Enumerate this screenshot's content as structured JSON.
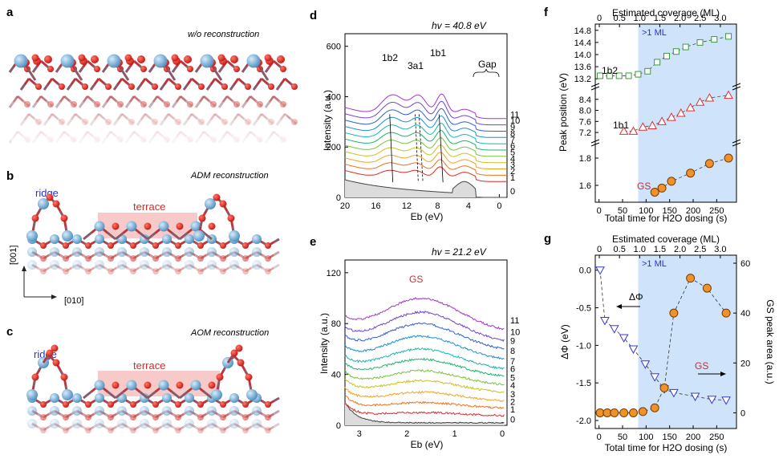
{
  "panels": {
    "a": {
      "letter": "a",
      "title": "w/o reconstruction"
    },
    "b": {
      "letter": "b",
      "title": "ADM reconstruction",
      "ridge": "ridge",
      "terrace": "terrace",
      "axis_v": "[001]",
      "axis_h": "[010]"
    },
    "c": {
      "letter": "c",
      "title": "AOM reconstruction",
      "ridge": "ridge",
      "terrace": "terrace"
    },
    "d": {
      "letter": "d",
      "energy": "hv = 40.8 eV",
      "ylabel": "Intensity (a.u.)",
      "xlabel": "Eb (eV)",
      "peaks": [
        "1b2",
        "3a1",
        "1b1"
      ],
      "gap": "Gap",
      "yticks": [
        "0",
        "200",
        "400",
        "600"
      ],
      "xticks": [
        "20",
        "16",
        "12",
        "8",
        "4",
        "0"
      ]
    },
    "e": {
      "letter": "e",
      "energy": "hv = 21.2 eV",
      "ylabel": "Intensity (a.u.)",
      "xlabel": "Eb (eV)",
      "peak": "GS",
      "yticks": [
        "0",
        "40",
        "80",
        "120"
      ],
      "xticks": [
        "3",
        "2",
        "1",
        "0"
      ]
    },
    "f": {
      "letter": "f",
      "top_label": "Estimated coverage (ML)",
      "ylabel": "Peak position (eV)",
      "xlabel": "Total time for H2O dosing (s)",
      "ml_label": ">1 ML",
      "labels": [
        "1b2",
        "1b1",
        "GS"
      ],
      "top_ticks": [
        "0",
        "0.5",
        "1.0",
        "1.5",
        "2.0",
        "2.5",
        "3.0"
      ],
      "xticks": [
        "0",
        "50",
        "100",
        "150",
        "200",
        "250"
      ],
      "yticks_1b2": [
        "13.2",
        "13.6",
        "14.0",
        "14.4",
        "14.8"
      ],
      "yticks_1b1": [
        "7.2",
        "7.6",
        "8.0",
        "8.4"
      ],
      "yticks_gs": [
        "1.6",
        "1.8"
      ]
    },
    "g": {
      "letter": "g",
      "top_label": "Estimated coverage (ML)",
      "ylabel": "ΔΦ (eV)",
      "ylabel_right": "GS peak area (a.u.)",
      "xlabel": "Total time for H2O dosing (s)",
      "ml_label": ">1 ML",
      "dphi_label": "ΔΦ",
      "gs_label": "GS",
      "top_ticks": [
        "0",
        "0.5",
        "1.0",
        "1.5",
        "2.0",
        "2.5",
        "3.0"
      ],
      "xticks": [
        "0",
        "50",
        "100",
        "150",
        "200",
        "250"
      ],
      "yticks": [
        "0.0",
        "-0.5",
        "-1.0",
        "-1.5",
        "-2.0"
      ],
      "yticks_right": [
        "0",
        "20",
        "40",
        "60"
      ]
    }
  },
  "spectra_labels": [
    "11",
    "10",
    "9",
    "8",
    "7",
    "6",
    "5",
    "4",
    "3",
    "2",
    "1",
    "0"
  ],
  "colors": {
    "ml_shade": "#cfe4fb",
    "terrace": "#f8c9c9",
    "o_atom": "#e0201e",
    "ti_atom": "#6aaad4",
    "gs_orange": "#f0922a",
    "ridge": "#2a30c8",
    "terrace_text": "#d42a2a"
  },
  "chart_data": [
    {
      "type": "line",
      "title": "d",
      "xlabel": "Eb (eV)",
      "ylabel": "Intensity (a.u.)",
      "xlim": [
        20,
        -1
      ],
      "ylim": [
        0,
        650
      ],
      "series_count": 12,
      "peak_positions_eV": {
        "1b2": 14.2,
        "3a1": 10.8,
        "1b1": 7.7
      }
    },
    {
      "type": "line",
      "title": "e",
      "xlabel": "Eb (eV)",
      "ylabel": "Intensity (a.u.)",
      "xlim": [
        3.3,
        -0.1
      ],
      "ylim": [
        0,
        130
      ],
      "series_count": 12,
      "peak_positions_eV": {
        "GS": 1.7
      }
    },
    {
      "type": "scatter",
      "title": "f",
      "xlabel": "Total time for H2O dosing (s)",
      "ylabel": "Peak position (eV)",
      "series": [
        {
          "name": "1b2",
          "x": [
            0,
            20,
            40,
            60,
            80,
            100,
            120,
            140,
            160,
            180,
            210,
            240,
            270
          ],
          "y": [
            13.3,
            13.3,
            13.3,
            13.3,
            13.35,
            13.45,
            13.75,
            13.95,
            14.1,
            14.25,
            14.4,
            14.5,
            14.6
          ]
        },
        {
          "name": "1b1",
          "x": [
            50,
            70,
            90,
            110,
            130,
            150,
            170,
            190,
            210,
            230,
            270
          ],
          "y": [
            7.25,
            7.25,
            7.4,
            7.45,
            7.6,
            7.75,
            7.9,
            8.1,
            8.3,
            8.45,
            8.55
          ]
        },
        {
          "name": "GS",
          "x": [
            115,
            130,
            150,
            190,
            230,
            270
          ],
          "y": [
            1.55,
            1.58,
            1.63,
            1.69,
            1.76,
            1.8
          ]
        }
      ],
      "ml_threshold_s": 80
    },
    {
      "type": "scatter",
      "title": "g",
      "xlabel": "Total time for H2O dosing (s)",
      "ylabel": "ΔΦ (eV)",
      "ylabel_right": "GS peak area (a.u.)",
      "series": [
        {
          "name": "ΔΦ",
          "axis": "left",
          "x": [
            0,
            10,
            30,
            50,
            70,
            95,
            115,
            135,
            155,
            200,
            235,
            265
          ],
          "y": [
            0.0,
            -0.67,
            -0.78,
            -0.9,
            -1.05,
            -1.25,
            -1.42,
            -1.58,
            -1.63,
            -1.68,
            -1.72,
            -1.73
          ]
        },
        {
          "name": "GS peak area",
          "axis": "right",
          "x": [
            0,
            15,
            30,
            50,
            70,
            90,
            115,
            135,
            155,
            190,
            225,
            265
          ],
          "y": [
            0,
            0,
            0,
            0,
            0,
            0.5,
            2,
            10,
            40,
            54,
            50,
            40
          ]
        }
      ],
      "ylim": [
        -2.0,
        0.2
      ],
      "ylim_right": [
        -5,
        60
      ],
      "ml_threshold_s": 80
    }
  ]
}
